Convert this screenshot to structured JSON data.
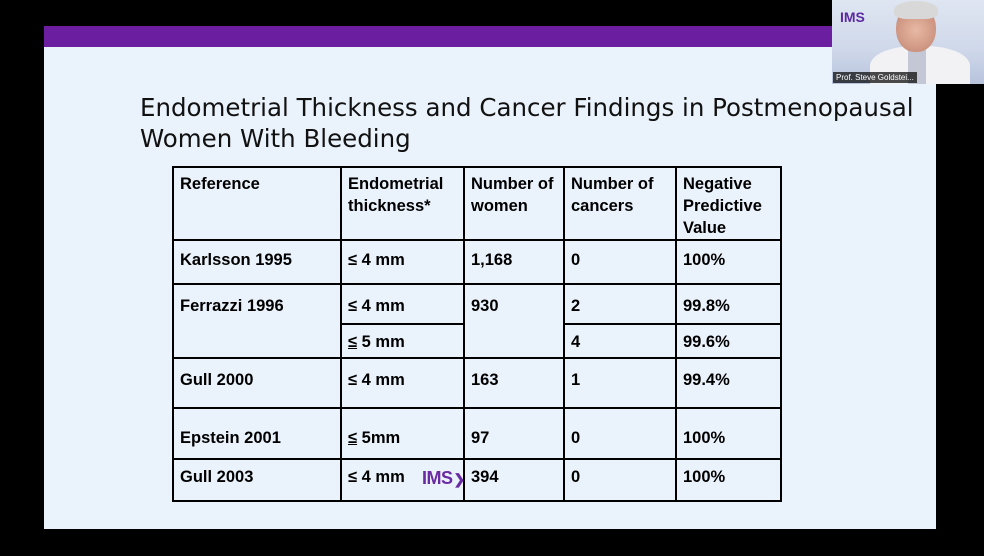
{
  "slide": {
    "title": "Endometrial Thickness and Cancer Findings in Postmenopausal Women With Bleeding",
    "accent_color": "#6b1fa0",
    "background_color": "#eaf2fb",
    "table": {
      "headers": [
        "Reference",
        "Endometrial thickness*",
        "Number of women",
        "Number of cancers",
        "Negative Predictive Value"
      ],
      "rows": [
        {
          "reference": "Karlsson 1995",
          "thickness": "≤ 4 mm",
          "women": "1,168",
          "cancers": "0",
          "npv": "100%"
        },
        {
          "reference": "Ferrazzi 1996",
          "thickness": "≤ 4 mm",
          "women": "930",
          "cancers": "2",
          "npv": "99.8%"
        },
        {
          "reference": "",
          "thickness": "5 mm",
          "thickness_prefix": "≤",
          "women": "",
          "cancers": "4",
          "npv": "99.6%"
        },
        {
          "reference": "Gull 2000",
          "thickness": "≤ 4 mm",
          "women": "163",
          "cancers": "1",
          "npv": "99.4%"
        },
        {
          "reference": "Epstein 2001",
          "thickness": "5mm",
          "thickness_prefix": "≤",
          "women": "97",
          "cancers": "0",
          "npv": "100%"
        },
        {
          "reference": "Gull 2003",
          "thickness": "≤ 4 mm",
          "women": "394",
          "cancers": "0",
          "npv": "100%"
        }
      ]
    },
    "watermark": {
      "text": "IMS",
      "icon": "chevron-right-icon",
      "color": "#6a2aa3"
    }
  },
  "video_tile": {
    "logo": "IMS",
    "participant_name": "Prof. Steve Goldstei..."
  }
}
